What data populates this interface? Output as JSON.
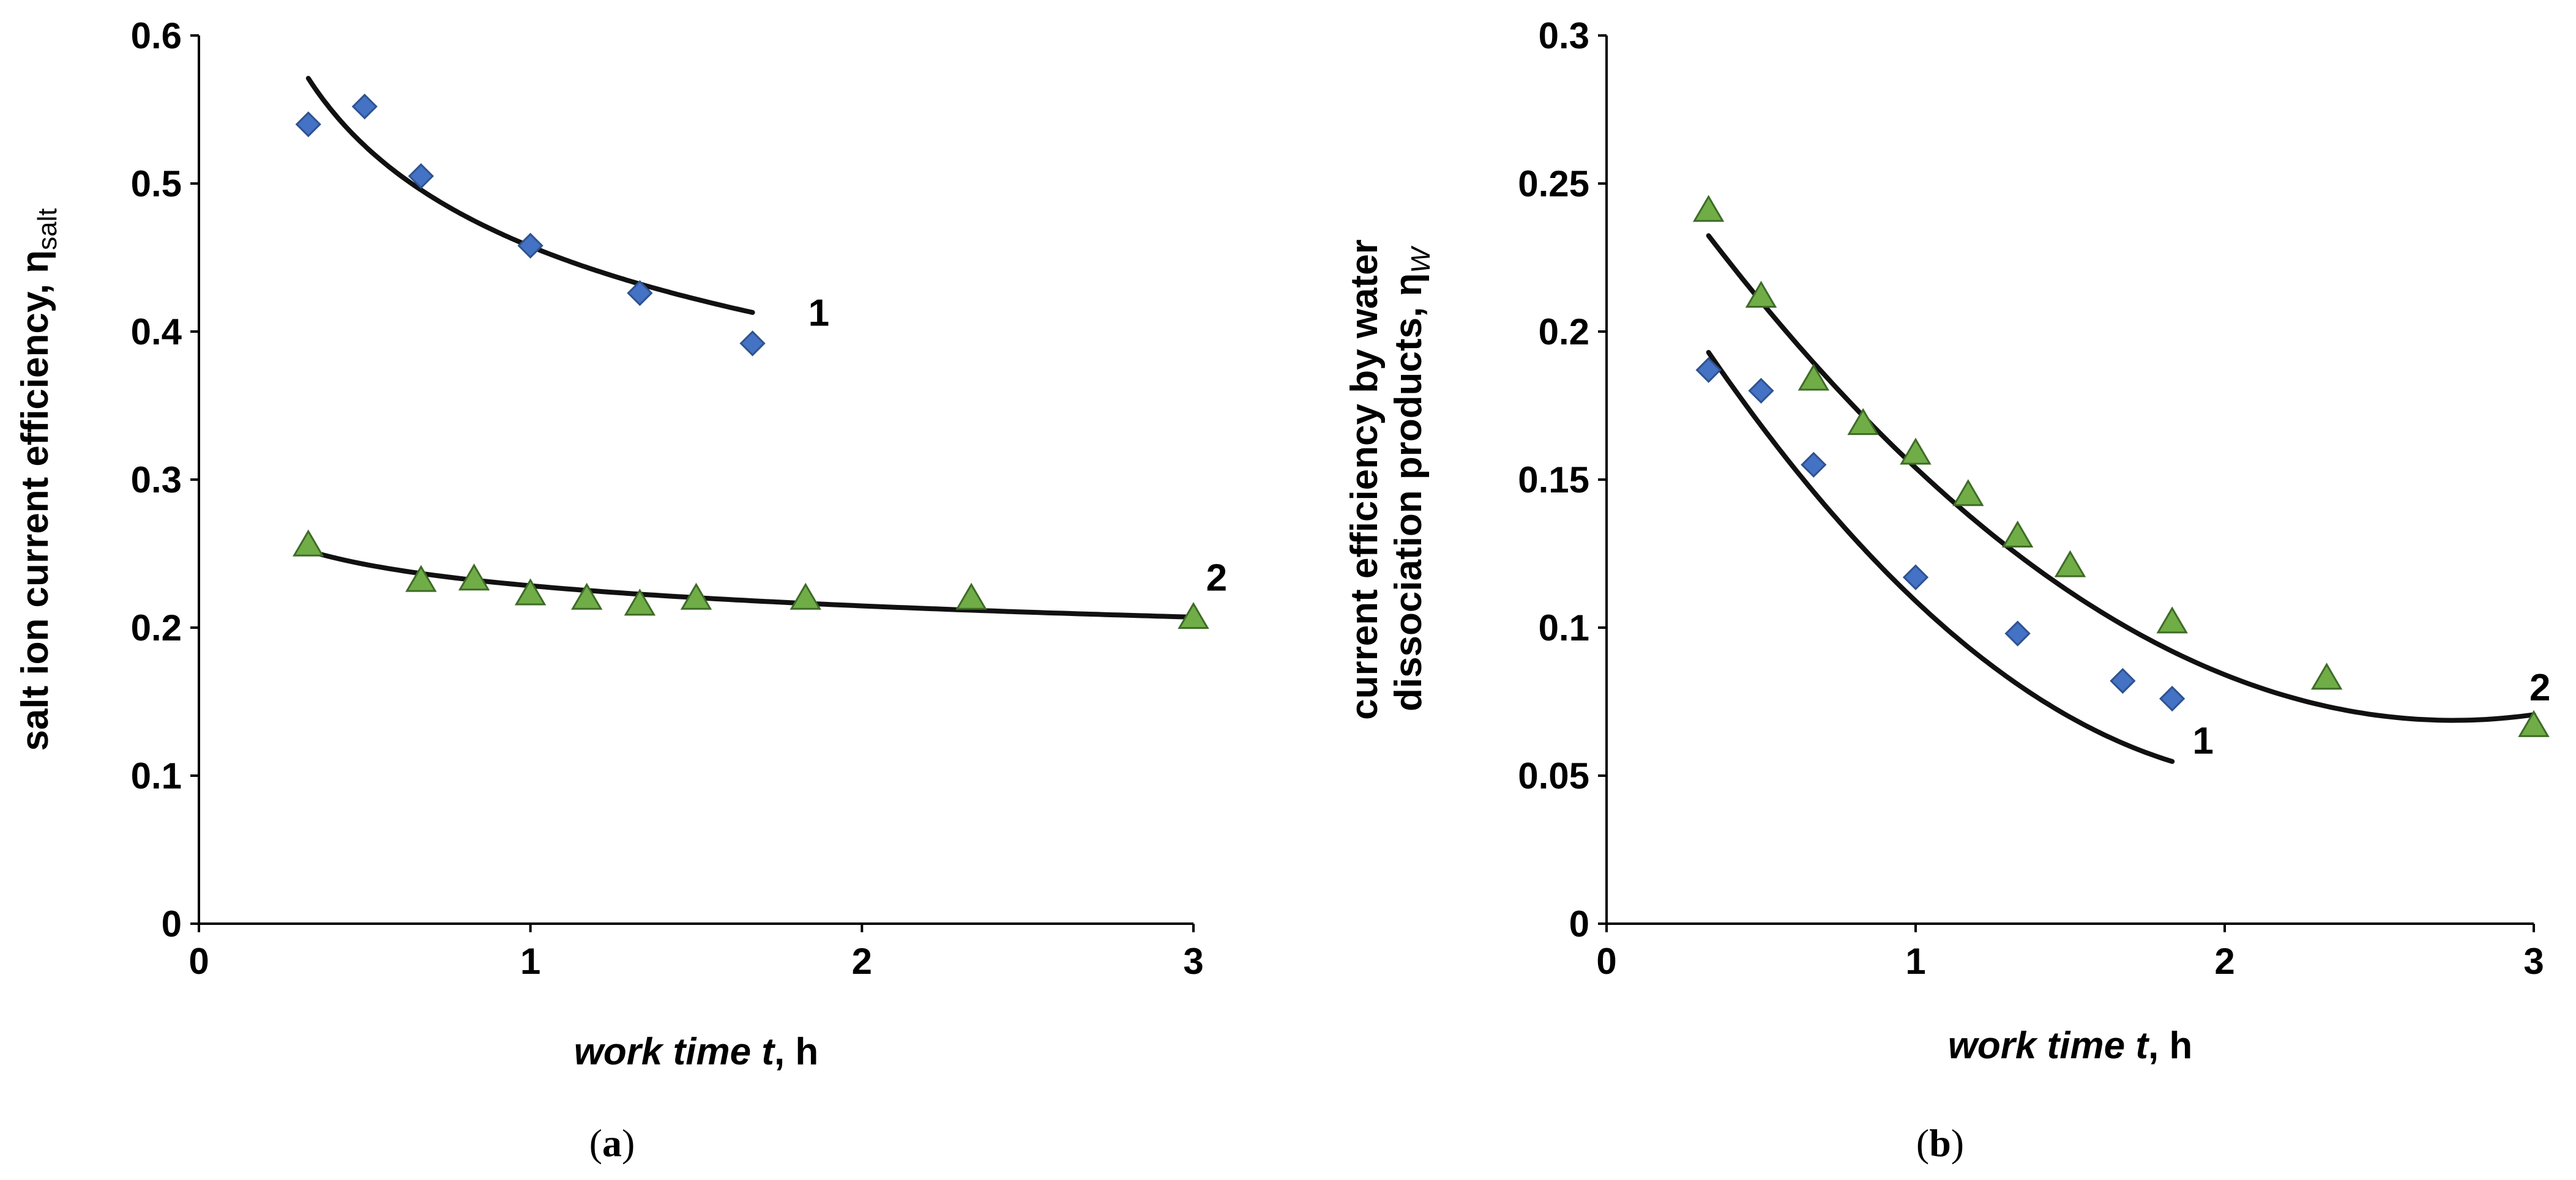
{
  "chart_data": [
    {
      "type": "scatter",
      "caption": "(a)",
      "xlabel": {
        "italic": "work time t",
        "rest": ", h"
      },
      "ylabel": {
        "text": "salt ion current efficiency, η",
        "sub": "salt"
      },
      "xlim": [
        0,
        3
      ],
      "ylim": [
        0,
        0.6
      ],
      "xticks": [
        0,
        1,
        2,
        3
      ],
      "yticks": [
        0,
        0.1,
        0.2,
        0.3,
        0.4,
        0.5,
        0.6
      ],
      "ytick_labels": [
        "0",
        "0.1",
        "0.2",
        "0.3",
        "0.4",
        "0.5",
        "0.6"
      ],
      "series": [
        {
          "name": "1",
          "marker": "diamond",
          "color": "#4472C4",
          "x": [
            0.33,
            0.5,
            0.67,
            1.0,
            1.33,
            1.67
          ],
          "y": [
            0.54,
            0.552,
            0.505,
            0.458,
            0.426,
            0.392
          ],
          "trend": {
            "type": "power",
            "a": 0.4575,
            "b": -0.2,
            "x_range": [
              0.33,
              1.67
            ]
          },
          "label_at": [
            1.87,
            0.413
          ]
        },
        {
          "name": "2",
          "marker": "triangle",
          "color": "#70AD47",
          "x": [
            0.33,
            0.67,
            0.83,
            1.0,
            1.17,
            1.33,
            1.5,
            1.83,
            2.33,
            3.0
          ],
          "y": [
            0.256,
            0.232,
            0.233,
            0.223,
            0.22,
            0.216,
            0.22,
            0.22,
            0.22,
            0.207
          ],
          "trend": {
            "type": "power",
            "a": 0.2283,
            "b": -0.0888,
            "x_range": [
              0.33,
              3.0
            ]
          },
          "label_at": [
            3.07,
            0.234
          ]
        }
      ]
    },
    {
      "type": "scatter",
      "caption": "(b)",
      "xlabel": {
        "italic": "work time t",
        "rest": ", h"
      },
      "ylabel": {
        "line1": "current efficiency by water",
        "line2": "dissociation products, η",
        "sub": "W"
      },
      "xlim": [
        0,
        3
      ],
      "ylim": [
        0,
        0.3
      ],
      "xticks": [
        0,
        1,
        2,
        3
      ],
      "yticks": [
        0,
        0.05,
        0.1,
        0.15,
        0.2,
        0.25,
        0.3
      ],
      "ytick_labels": [
        "0",
        "0.05",
        "0.1",
        "0.15",
        "0.2",
        "0.25",
        "0.3"
      ],
      "series": [
        {
          "name": "1",
          "marker": "diamond",
          "color": "#4472C4",
          "x": [
            0.33,
            0.5,
            0.67,
            1.0,
            1.33,
            1.67,
            1.83
          ],
          "y": [
            0.187,
            0.18,
            0.155,
            0.117,
            0.098,
            0.082,
            0.076
          ],
          "trend": {
            "type": "quadratic",
            "c": [
              0.2475,
              -0.1785,
              0.04
            ],
            "x_range": [
              0.33,
              1.83
            ]
          },
          "label_at": [
            1.93,
            0.062
          ]
        },
        {
          "name": "2",
          "marker": "triangle",
          "color": "#70AD47",
          "x": [
            0.33,
            0.5,
            0.67,
            0.83,
            1.0,
            1.17,
            1.33,
            1.5,
            1.83,
            2.33,
            3.0
          ],
          "y": [
            0.241,
            0.212,
            0.184,
            0.169,
            0.159,
            0.145,
            0.131,
            0.121,
            0.102,
            0.083,
            0.067
          ],
          "trend": {
            "type": "quadratic",
            "c": [
              0.2803,
              -0.1545,
              0.0282
            ],
            "x_range": [
              0.33,
              3.0
            ]
          },
          "label_at": [
            3.02,
            0.08
          ]
        }
      ]
    }
  ]
}
